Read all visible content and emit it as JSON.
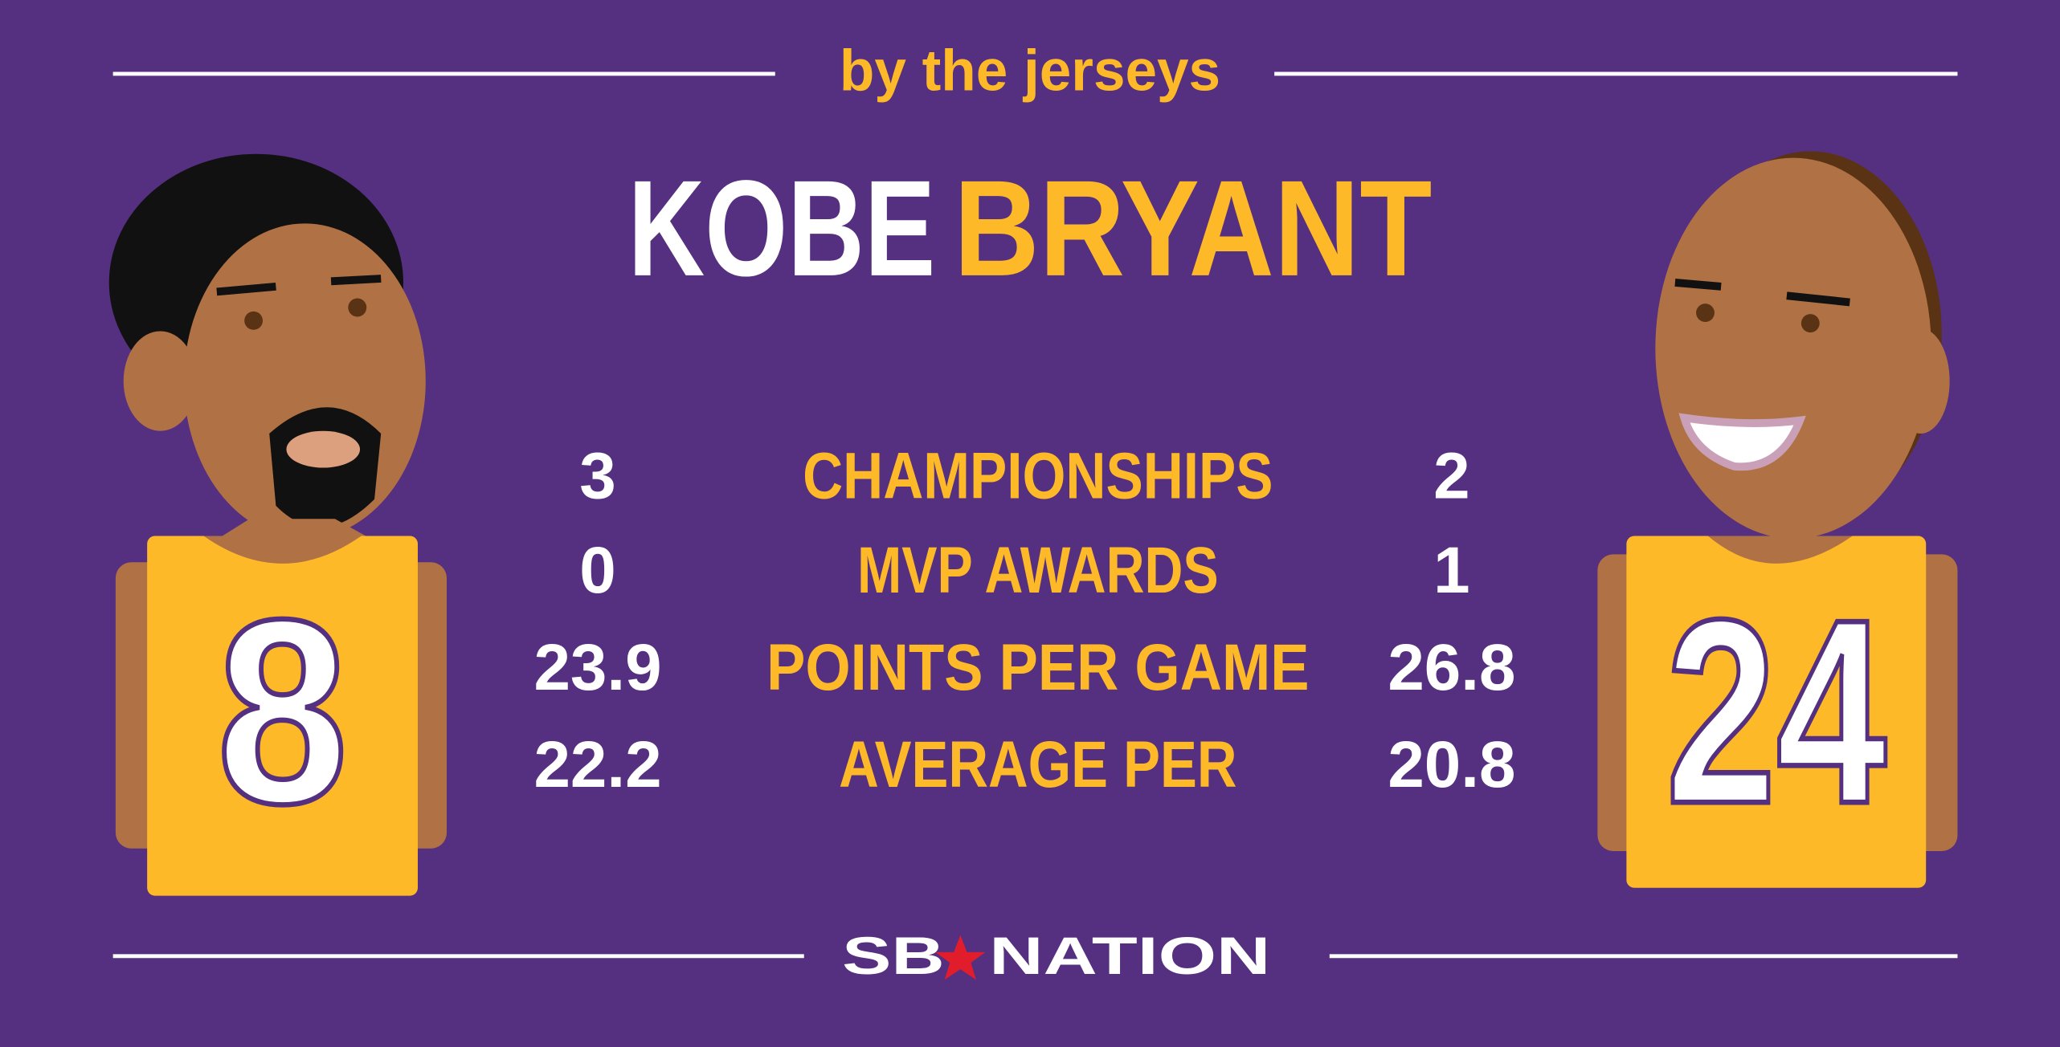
{
  "header": {
    "tagline": "by the jerseys",
    "first_name": "KOBE",
    "last_name": "BRYANT"
  },
  "jerseys": {
    "left": 8,
    "right": 24
  },
  "stats": [
    {
      "label": "CHAMPIONSHIPS",
      "left": 3,
      "right": 2
    },
    {
      "label": "MVP AWARDS",
      "left": 0,
      "right": 1
    },
    {
      "label": "POINTS PER GAME",
      "left": 23.9,
      "right": 26.8
    },
    {
      "label": "AVERAGE PER",
      "left": 22.2,
      "right": 20.8
    }
  ],
  "footer": {
    "logo_left": "SB",
    "logo_right": "NATION"
  }
}
